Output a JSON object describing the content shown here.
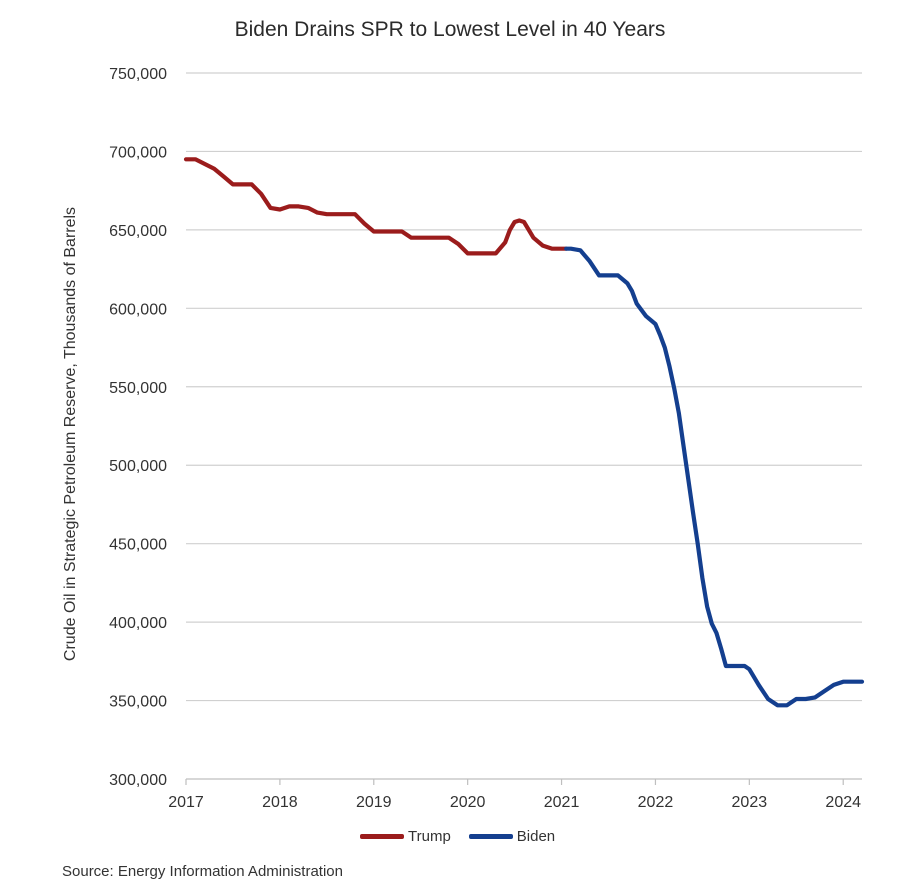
{
  "chart_data": {
    "type": "line",
    "title": "Biden Drains SPR to Lowest Level in 40 Years",
    "xlabel": "",
    "ylabel": "Crude Oil in Strategic Petroleum Reserve, Thousands of Barrels",
    "ylim": [
      300000,
      750000
    ],
    "xlim": [
      2017,
      2024.2
    ],
    "y_ticks": [
      "300,000",
      "350,000",
      "400,000",
      "450,000",
      "500,000",
      "550,000",
      "600,000",
      "650,000",
      "700,000",
      "750,000"
    ],
    "x_ticks": [
      "2017",
      "2018",
      "2019",
      "2020",
      "2021",
      "2022",
      "2023",
      "2024"
    ],
    "grid": true,
    "legend_position": "bottom",
    "series": [
      {
        "name": "Trump",
        "color": "#9b1c1c",
        "x": [
          2017.0,
          2017.1,
          2017.2,
          2017.3,
          2017.4,
          2017.5,
          2017.7,
          2017.8,
          2017.9,
          2018.0,
          2018.1,
          2018.2,
          2018.3,
          2018.4,
          2018.5,
          2018.6,
          2018.8,
          2018.9,
          2019.0,
          2019.1,
          2019.2,
          2019.3,
          2019.4,
          2019.5,
          2019.6,
          2019.7,
          2019.8,
          2019.9,
          2020.0,
          2020.1,
          2020.2,
          2020.3,
          2020.4,
          2020.45,
          2020.5,
          2020.55,
          2020.6,
          2020.7,
          2020.8,
          2020.9,
          2021.0,
          2021.05
        ],
        "values": [
          695000,
          695000,
          692000,
          689000,
          684000,
          679000,
          679000,
          673000,
          664000,
          663000,
          665000,
          665000,
          664000,
          661000,
          660000,
          660000,
          660000,
          654000,
          649000,
          649000,
          649000,
          649000,
          645000,
          645000,
          645000,
          645000,
          645000,
          641000,
          635000,
          635000,
          635000,
          635000,
          642000,
          650000,
          655000,
          656000,
          655000,
          645000,
          640000,
          638000,
          638000,
          638000
        ]
      },
      {
        "name": "Biden",
        "color": "#143f8f",
        "x": [
          2021.05,
          2021.1,
          2021.2,
          2021.3,
          2021.4,
          2021.5,
          2021.6,
          2021.7,
          2021.75,
          2021.8,
          2021.9,
          2022.0,
          2022.05,
          2022.1,
          2022.15,
          2022.2,
          2022.25,
          2022.3,
          2022.35,
          2022.4,
          2022.45,
          2022.5,
          2022.55,
          2022.6,
          2022.65,
          2022.7,
          2022.75,
          2022.8,
          2022.9,
          2022.95,
          2023.0,
          2023.1,
          2023.2,
          2023.3,
          2023.4,
          2023.45,
          2023.5,
          2023.55,
          2023.6,
          2023.7,
          2023.8,
          2023.9,
          2024.0,
          2024.1,
          2024.2
        ],
        "values": [
          638000,
          638000,
          637000,
          630000,
          621000,
          621000,
          621000,
          616000,
          611000,
          603000,
          595000,
          590000,
          583000,
          575000,
          563000,
          549000,
          533000,
          512000,
          491000,
          470000,
          450000,
          428000,
          410000,
          399000,
          393000,
          383000,
          372000,
          372000,
          372000,
          372000,
          370000,
          360000,
          351000,
          347000,
          347000,
          349000,
          351000,
          351000,
          351000,
          352000,
          356000,
          360000,
          362000,
          362000,
          362000
        ]
      }
    ]
  },
  "source": "Source: Energy Information Administration"
}
